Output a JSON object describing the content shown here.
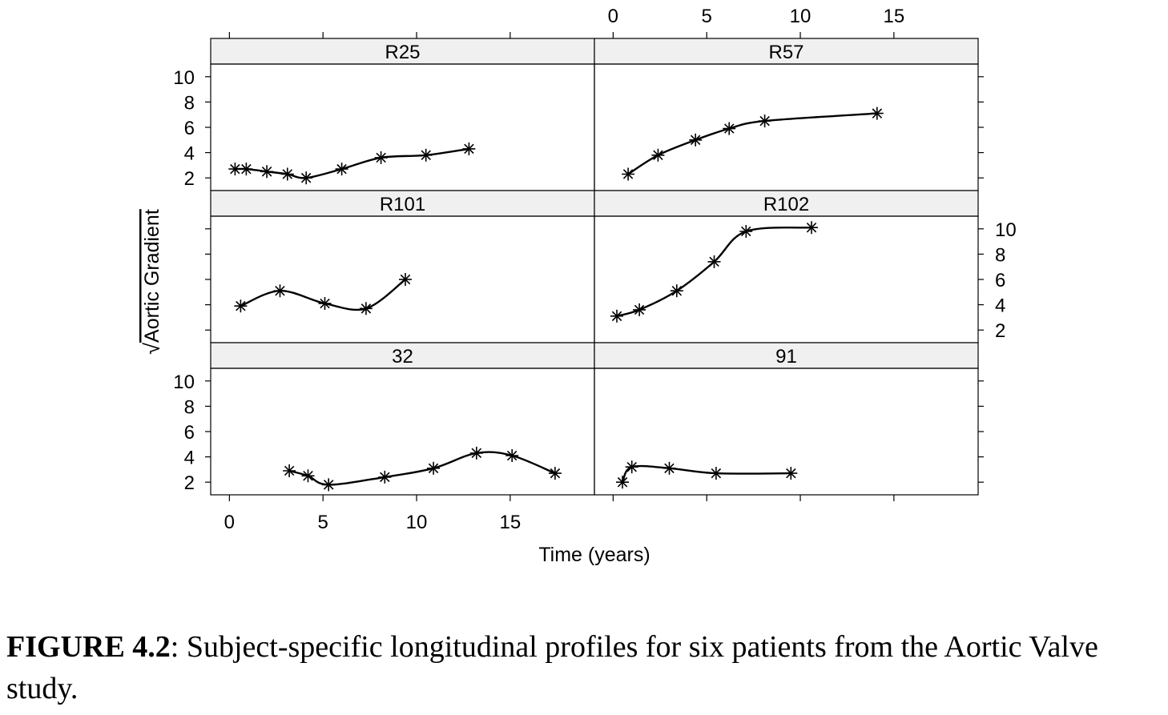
{
  "chart_data": {
    "type": "line",
    "layout": "lattice-3x2",
    "marker": "asterisk",
    "smoother": true,
    "xlabel": "Time (years)",
    "ylabel_radical": "√",
    "ylabel": "Aortic Gradient",
    "xlim": [
      -1,
      19.5
    ],
    "ylim": [
      1,
      11
    ],
    "xticks": [
      0,
      5,
      10,
      15
    ],
    "yticks": [
      2,
      4,
      6,
      8,
      10
    ],
    "panels": [
      {
        "label": "R25",
        "x": [
          0.3,
          0.9,
          2.0,
          3.1,
          4.1,
          6.0,
          8.1,
          10.5,
          12.8
        ],
        "y": [
          2.7,
          2.7,
          2.5,
          2.3,
          2.0,
          2.7,
          3.6,
          3.8,
          4.3
        ]
      },
      {
        "label": "R57",
        "x": [
          0.8,
          2.4,
          4.4,
          6.2,
          8.1,
          14.1
        ],
        "y": [
          2.3,
          3.8,
          5.0,
          5.9,
          6.5,
          7.1
        ]
      },
      {
        "label": "R101",
        "x": [
          0.6,
          2.7,
          5.1,
          7.3,
          9.4
        ],
        "y": [
          3.9,
          5.1,
          4.1,
          3.7,
          6.0
        ]
      },
      {
        "label": "R102",
        "x": [
          0.2,
          1.4,
          3.4,
          5.4,
          7.1,
          10.6
        ],
        "y": [
          3.1,
          3.6,
          5.1,
          7.4,
          9.8,
          10.1
        ]
      },
      {
        "label": "32",
        "x": [
          3.2,
          4.2,
          5.3,
          8.3,
          10.9,
          13.2,
          15.1,
          17.4
        ],
        "y": [
          2.9,
          2.5,
          1.8,
          2.4,
          3.1,
          4.3,
          4.1,
          2.7
        ]
      },
      {
        "label": "91",
        "x": [
          0.5,
          1.0,
          3.0,
          5.5,
          9.5
        ],
        "y": [
          2.0,
          3.2,
          3.1,
          2.7,
          2.7
        ]
      }
    ]
  },
  "caption": {
    "label": "FIGURE 4.2",
    "text": ": Subject-specific longitudinal profiles for six patients from the Aortic Valve study."
  }
}
